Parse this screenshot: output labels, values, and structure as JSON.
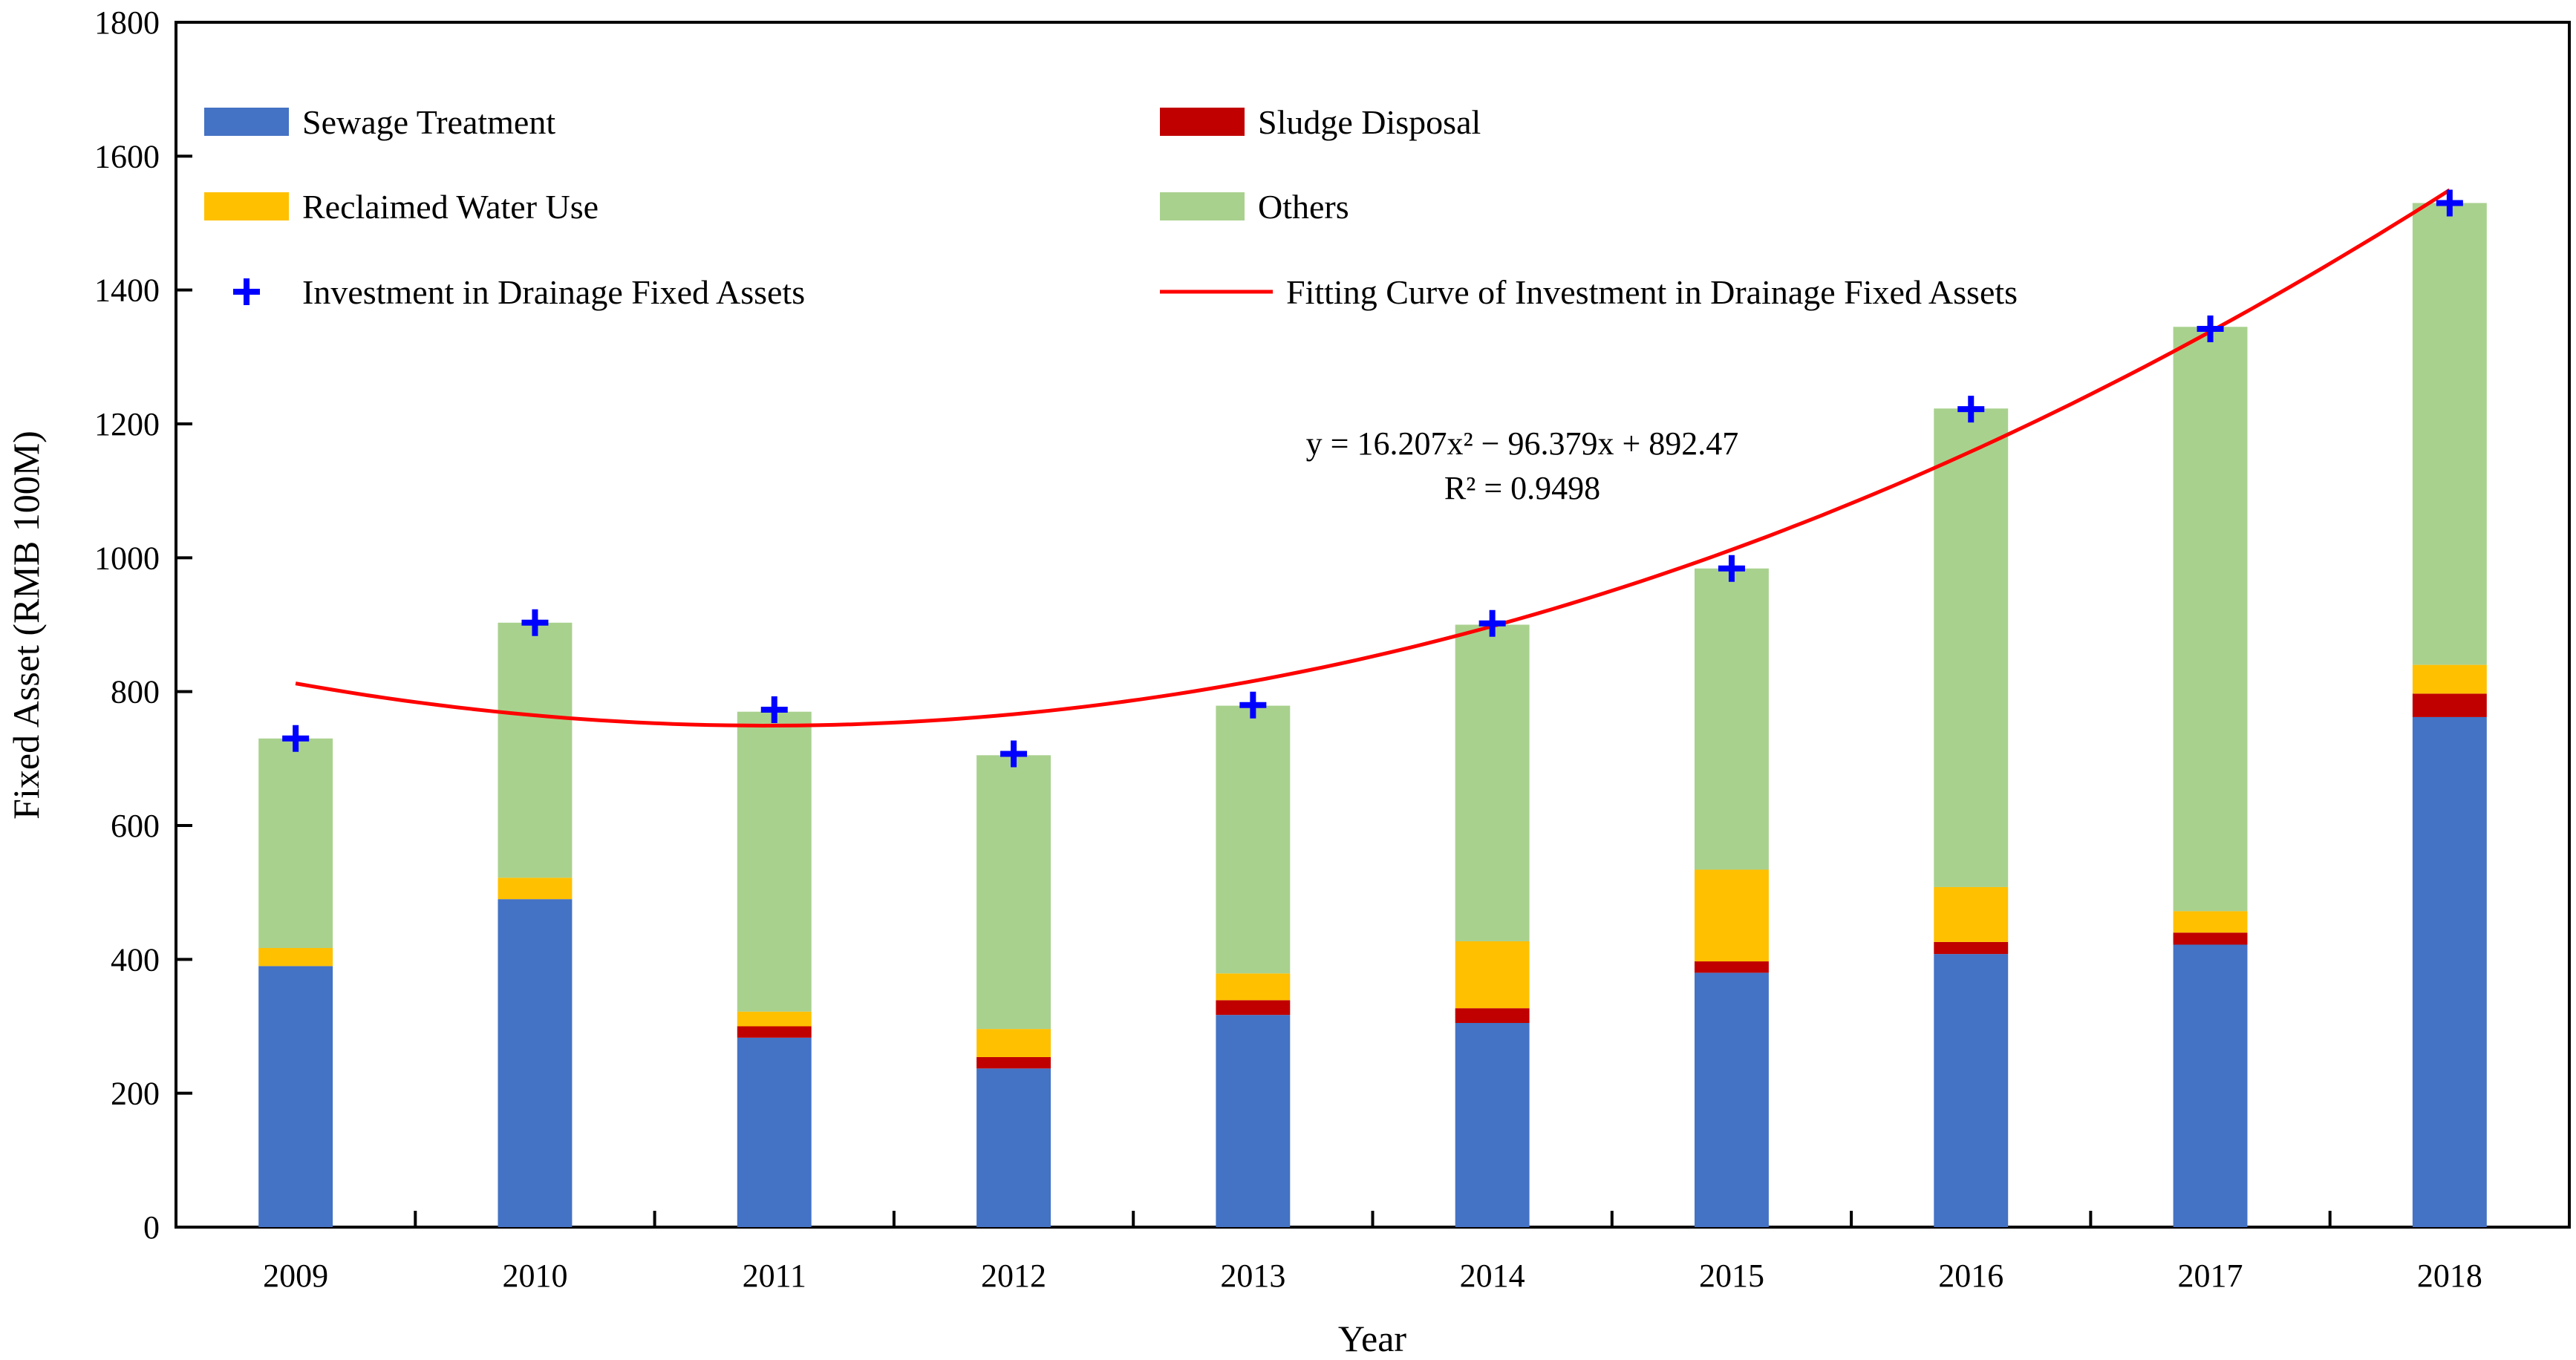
{
  "chart_data": {
    "type": "bar",
    "stacked": true,
    "title": "",
    "xlabel": "Year",
    "ylabel": "Fixed Asset (RMB 100M)",
    "ylim": [
      0,
      1800
    ],
    "yticks": [
      0,
      200,
      400,
      600,
      800,
      1000,
      1200,
      1400,
      1600,
      1800
    ],
    "categories": [
      "2009",
      "2010",
      "2011",
      "2012",
      "2013",
      "2014",
      "2015",
      "2016",
      "2017",
      "2018"
    ],
    "series": [
      {
        "name": "Sewage Treatment",
        "color": "#4472C4",
        "values": [
          390,
          490,
          283,
          237,
          317,
          305,
          380,
          408,
          422,
          762
        ]
      },
      {
        "name": "Sludge Disposal",
        "color": "#C00000",
        "values": [
          0,
          0,
          17,
          17,
          22,
          22,
          17,
          18,
          18,
          35
        ]
      },
      {
        "name": "Reclaimed Water Use",
        "color": "#FFC000",
        "values": [
          27,
          32,
          22,
          42,
          40,
          100,
          137,
          82,
          32,
          43
        ]
      },
      {
        "name": "Others",
        "color": "#A9D18E",
        "values": [
          313,
          381,
          448,
          409,
          400,
          473,
          450,
          715,
          873,
          690
        ]
      }
    ],
    "markers": {
      "name": "Investment in Drainage Fixed Assets",
      "color": "#0000FF",
      "values": [
        730,
        903,
        773,
        707,
        780,
        902,
        984,
        1222,
        1342,
        1530
      ]
    },
    "fit": {
      "name": "Fitting Curve of Investment in Drainage Fixed Assets",
      "color": "#FF0000",
      "coefficients": [
        16.207,
        -96.379,
        892.47
      ],
      "equation": "y = 16.207x² − 96.379x + 892.47",
      "r2": "R² = 0.9498"
    },
    "legend": {
      "placement": "top",
      "items": [
        {
          "label": "Sewage Treatment",
          "kind": "rect",
          "color": "#4472C4"
        },
        {
          "label": "Sludge Disposal",
          "kind": "rect",
          "color": "#C00000"
        },
        {
          "label": "Reclaimed Water Use",
          "kind": "rect",
          "color": "#FFC000"
        },
        {
          "label": "Others",
          "kind": "rect",
          "color": "#A9D18E"
        },
        {
          "label": "Investment in Drainage Fixed Assets",
          "kind": "plus",
          "color": "#0000FF"
        },
        {
          "label": "Fitting Curve of Investment in Drainage Fixed Assets",
          "kind": "line",
          "color": "#FF0000"
        }
      ]
    }
  }
}
